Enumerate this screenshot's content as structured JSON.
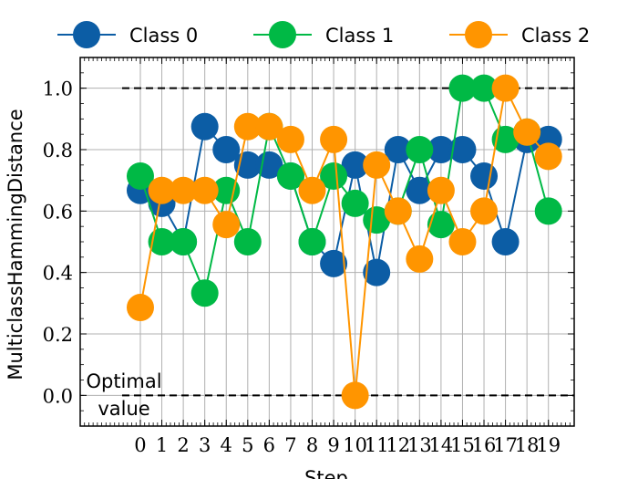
{
  "chart_data": {
    "type": "line",
    "xlabel": "Step",
    "ylabel": "MulticlassHammingDistance",
    "x": [
      0,
      1,
      2,
      3,
      4,
      5,
      6,
      7,
      8,
      9,
      10,
      11,
      12,
      13,
      14,
      15,
      16,
      17,
      18,
      19
    ],
    "xlim": [
      -2.8,
      20.2
    ],
    "ylim": [
      -0.1,
      1.1
    ],
    "yticks": [
      0.0,
      0.2,
      0.4,
      0.6,
      0.8,
      1.0
    ],
    "yticklabels": [
      "0.0",
      "0.2",
      "0.4",
      "0.6",
      "0.8",
      "1.0"
    ],
    "grid": true,
    "legend_position": "top",
    "series": [
      {
        "name": "Class 0",
        "color": "#0C5DA5",
        "values": [
          0.667,
          0.625,
          0.5,
          0.875,
          0.8,
          0.75,
          0.75,
          0.714,
          0.5,
          0.429,
          0.75,
          0.4,
          0.8,
          0.667,
          0.8,
          0.8,
          0.714,
          0.5,
          0.833,
          0.833
        ]
      },
      {
        "name": "Class 1",
        "color": "#00B945",
        "values": [
          0.714,
          0.5,
          0.5,
          0.333,
          0.667,
          0.5,
          0.875,
          0.714,
          0.5,
          0.714,
          0.625,
          0.571,
          0.6,
          0.8,
          0.556,
          1.0,
          1.0,
          0.833,
          0.857,
          0.6
        ]
      },
      {
        "name": "Class 2",
        "color": "#FF9500",
        "values": [
          0.286,
          0.667,
          0.667,
          0.667,
          0.556,
          0.875,
          0.875,
          0.833,
          0.667,
          0.833,
          0.0,
          0.75,
          0.6,
          0.444,
          0.667,
          0.5,
          0.6,
          1.0,
          0.857,
          0.778
        ]
      }
    ],
    "reference_lines": [
      {
        "y": 1.0,
        "x_from": 0.0,
        "x_to": 20.2,
        "style": "dashed",
        "color": "#000000"
      },
      {
        "y": 0.0,
        "x_from": 0.0,
        "x_to": 20.2,
        "style": "dashed",
        "color": "#000000"
      }
    ],
    "annotation": {
      "text_line1": "Optimal",
      "text_line2": "value"
    }
  }
}
